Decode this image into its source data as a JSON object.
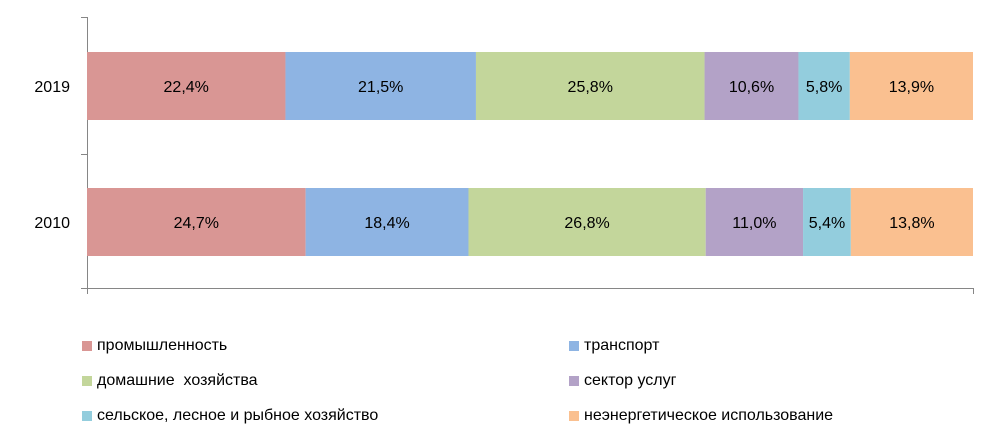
{
  "chart_data": {
    "type": "bar",
    "orientation": "horizontal",
    "stacked": true,
    "normalized": true,
    "categories": [
      "2019",
      "2010"
    ],
    "series": [
      {
        "name": "промышленность",
        "color": "#d99694",
        "values": [
          22.4,
          24.7
        ],
        "labels": [
          "22,4%",
          "24,7%"
        ]
      },
      {
        "name": "транспорт",
        "color": "#8eb4e3",
        "values": [
          21.5,
          18.4
        ],
        "labels": [
          "21,5%",
          "18,4%"
        ]
      },
      {
        "name": "домашние  хозяйства",
        "color": "#c3d69b",
        "values": [
          25.8,
          26.8
        ],
        "labels": [
          "25,8%",
          "26,8%"
        ]
      },
      {
        "name": "сектор услуг",
        "color": "#b3a2c7",
        "values": [
          10.6,
          11.0
        ],
        "labels": [
          "10,6%",
          "11,0%"
        ]
      },
      {
        "name": "сельское, лесное и рыбное хозяйство",
        "color": "#93cddd",
        "values": [
          5.8,
          5.4
        ],
        "labels": [
          "5,8%",
          "5,4%"
        ]
      },
      {
        "name": "неэнергетическое использование",
        "color": "#fac090",
        "values": [
          13.9,
          13.8
        ],
        "labels": [
          "13,9%",
          "13,8%"
        ]
      }
    ],
    "xlim": [
      0,
      100
    ],
    "grid": false,
    "legend_position": "bottom"
  }
}
